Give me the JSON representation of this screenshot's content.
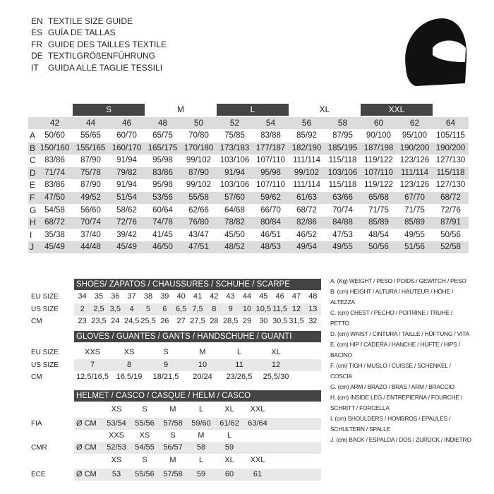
{
  "header": {
    "languages": [
      {
        "code": "EN",
        "title": "TEXTILE SIZE GUIDE"
      },
      {
        "code": "ES",
        "title": "GUÍA DE TALLAS"
      },
      {
        "code": "FR",
        "title": "GUIDE DES TAILLES TEXTILE"
      },
      {
        "code": "DE",
        "title": "TEXTILGRÖßENFÜHRUNG"
      },
      {
        "code": "IT",
        "title": "GUIDA ALLE TAGLIE TESSILI"
      }
    ]
  },
  "textile": {
    "size_groups": [
      "S",
      "M",
      "L",
      "XL",
      "XXL"
    ],
    "sizes": [
      42,
      44,
      46,
      48,
      50,
      52,
      54,
      56,
      58,
      60,
      62,
      64
    ],
    "rows": [
      {
        "label": "A",
        "values": [
          "50/60",
          "55/65",
          "60/70",
          "65/75",
          "70/80",
          "75/85",
          "83/88",
          "85/92",
          "87/95",
          "90/100",
          "95/100",
          "105/115"
        ]
      },
      {
        "label": "B",
        "values": [
          "150/160",
          "155/165",
          "160/170",
          "165/175",
          "170/180",
          "173/183",
          "177/187",
          "182/190",
          "185/195",
          "187/198",
          "190/200",
          "190/200"
        ]
      },
      {
        "label": "C",
        "values": [
          "83/86",
          "87/90",
          "91/94",
          "95/98",
          "99/102",
          "103/106",
          "107/110",
          "111/114",
          "115/118",
          "119/122",
          "123/126",
          "127/130"
        ]
      },
      {
        "label": "D",
        "values": [
          "71/74",
          "75/78",
          "79/82",
          "83/86",
          "87/90",
          "91/94",
          "95/98",
          "99/102",
          "103/106",
          "107/110",
          "111/114",
          "115/118"
        ]
      },
      {
        "label": "E",
        "values": [
          "83/86",
          "87/90",
          "91/94",
          "95/98",
          "99/102",
          "103/106",
          "107/110",
          "111/114",
          "115/118",
          "119/122",
          "123/126",
          "127/130"
        ]
      },
      {
        "label": "F",
        "values": [
          "47/50",
          "49/52",
          "51/54",
          "53/56",
          "55/58",
          "57/60",
          "59/62",
          "61/63",
          "63/66",
          "65/68",
          "67/70",
          "68/72"
        ]
      },
      {
        "label": "G",
        "values": [
          "54/58",
          "56/60",
          "58/62",
          "60/64",
          "62/66",
          "64/68",
          "66/70",
          "68/72",
          "70/74",
          "71/75",
          "71/75",
          "72/76"
        ]
      },
      {
        "label": "H",
        "values": [
          "68/72",
          "70/74",
          "72/76",
          "74/78",
          "76/80",
          "78/82",
          "80/84",
          "82/86",
          "84/88",
          "85/89",
          "85/89",
          "87/91"
        ]
      },
      {
        "label": "I",
        "values": [
          "35/38",
          "37/40",
          "39/42",
          "41/45",
          "43/47",
          "45/50",
          "46/51",
          "46/52",
          "47/53",
          "48/54",
          "49/55",
          "50/56"
        ]
      },
      {
        "label": "J",
        "values": [
          "45/49",
          "44/48",
          "45/49",
          "46/50",
          "47/51",
          "48/52",
          "48/53",
          "49/54",
          "49/55",
          "50/56",
          "51/56",
          "52/58"
        ]
      }
    ]
  },
  "legend": [
    "A. (Kg) WEIGHT / PESO / POIDS / GEWITCH / PESO",
    "B. (cm) HEIGHT / ALTURA / HAUTEUR / HÖHE / ALTEZZA",
    "C. (cm) CHEST / PECHO / POITRINE / TRUHE / PETTO",
    "D. (cm) WAIST / CINTURA / TAILLE / HÜFTUNG / VITA",
    "E. (cm) HIP / CADERA / HANCHE / HÜFTE / HIPS / BACINO",
    "F. (cm) TIGH / MUSLO / CUISSE / SCHENKEL / COSCIA",
    "G. (cm) ARM / BRAZO / BRAS / ARM / BRACCIO",
    "H. (cm) INSIDE LEG / ENTREPIERNA / FOURCHE / SCHRITT / FORCELLA",
    "I. (cm) SHOULDERS / HOMBROS / ÉPAULES / SCHULTERN / SPALLE",
    "J. (cm) BACK / ESPALDA / DOS / ZURÜCK / INDIETRO"
  ],
  "shoes": {
    "title": "SHOES/ ZAPATOS / CHAUSSURES / SCHUHE / SCARPE",
    "rows": [
      {
        "label": "EU SIZE",
        "values": [
          34,
          35,
          36,
          37,
          38,
          39,
          40,
          41,
          42,
          43,
          44,
          45,
          46,
          47,
          48
        ]
      },
      {
        "label": "US SIZE",
        "values": [
          "2",
          "2,5",
          "3,5",
          "4",
          "5",
          "6",
          "6,5",
          "7,5",
          "8",
          "9",
          "10",
          "10,5",
          "11,5",
          "12",
          "13"
        ]
      },
      {
        "label": "CM",
        "values": [
          "23",
          "23,5",
          "24",
          "24,5",
          "25,5",
          "26",
          "27",
          "27,5",
          "28",
          "28,5",
          "29",
          "30",
          "30,5",
          "31,5",
          "32"
        ]
      }
    ]
  },
  "gloves": {
    "title": "GLOVES / GUANTES / GANTS / HANDSCHUHE / GUANTI",
    "rows": [
      {
        "label": "EU SIZE",
        "values": [
          "XXS",
          "XS",
          "S",
          "M",
          "L",
          "XL"
        ]
      },
      {
        "label": "US SIZE",
        "values": [
          "7",
          "8",
          "9",
          "10",
          "11",
          "12"
        ]
      },
      {
        "label": "CM",
        "values": [
          "12,5/16,5",
          "16,5/19",
          "18/21,5",
          "20/24",
          "23/26,5",
          "25,5/30"
        ]
      }
    ]
  },
  "helmet": {
    "title": "HELMET / CASCO / CASQUE / HELM / CASCO",
    "groups": [
      {
        "label": "FIA",
        "unit": "Ø CM",
        "sizes": [
          "XS",
          "S",
          "M",
          "L",
          "XL",
          "XXL"
        ],
        "values": [
          "53/54",
          "55/56",
          "57/58",
          "59/60",
          "61/62",
          "63/64"
        ]
      },
      {
        "label": "CMR",
        "unit": "Ø CM",
        "sizes": [
          "XXS",
          "XS",
          "S",
          "M",
          "L"
        ],
        "values": [
          "52/53",
          "54/55",
          "56/57",
          "58",
          "59"
        ]
      },
      {
        "label": "ECE",
        "unit": "Ø CM",
        "sizes": [
          "XS",
          "S",
          "M",
          "L",
          "XL",
          "XXL"
        ],
        "values": [
          "53",
          "55/56",
          "57/58",
          "59",
          "60",
          "61"
        ]
      }
    ]
  }
}
